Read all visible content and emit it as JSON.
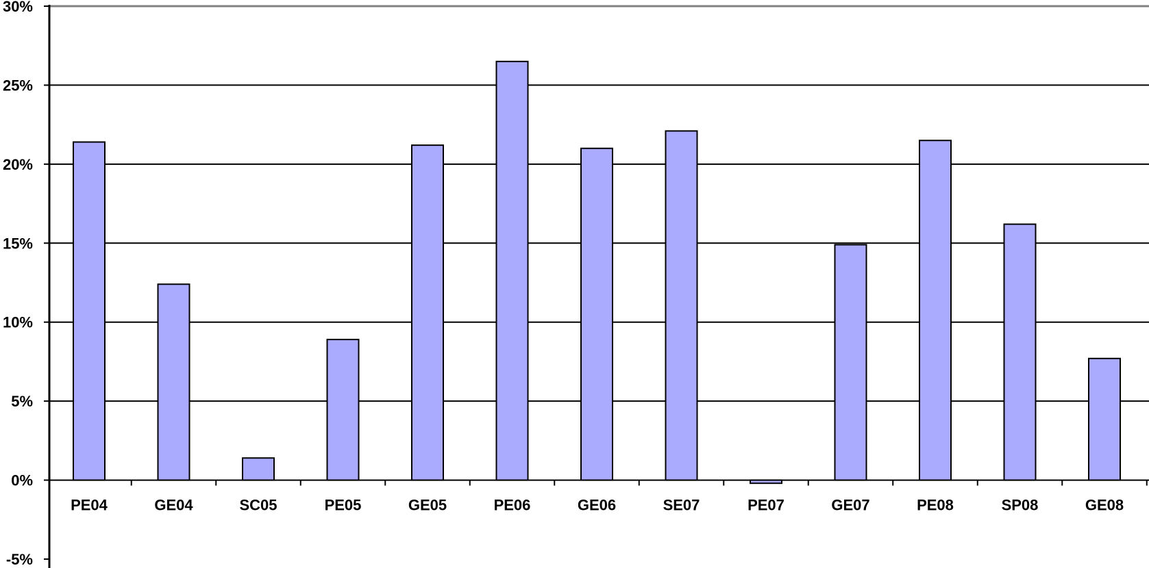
{
  "chart_data": {
    "type": "bar",
    "title": "",
    "xlabel": "",
    "ylabel": "",
    "categories": [
      "PE04",
      "GE04",
      "SC05",
      "PE05",
      "GE05",
      "PE06",
      "GE06",
      "SE07",
      "PE07",
      "GE07",
      "PE08",
      "SP08",
      "GE08"
    ],
    "series": [
      {
        "values": [
          21.4,
          12.4,
          1.4,
          8.9,
          21.2,
          26.5,
          21.0,
          22.1,
          -0.2,
          14.9,
          21.5,
          16.2,
          7.7
        ]
      }
    ],
    "ylim": [
      -5,
      30
    ],
    "yticks": [
      -5,
      0,
      5,
      10,
      15,
      20,
      25,
      30
    ],
    "ytick_labels": [
      "-5%",
      "0%",
      "5%",
      "10%",
      "15%",
      "20%",
      "25%",
      "30%"
    ],
    "grid": true,
    "legend": "none",
    "colors": {
      "bar_fill": "#aaaaff",
      "bar_stroke": "#000000",
      "grid": "#000000",
      "top_border": "#808080"
    }
  }
}
